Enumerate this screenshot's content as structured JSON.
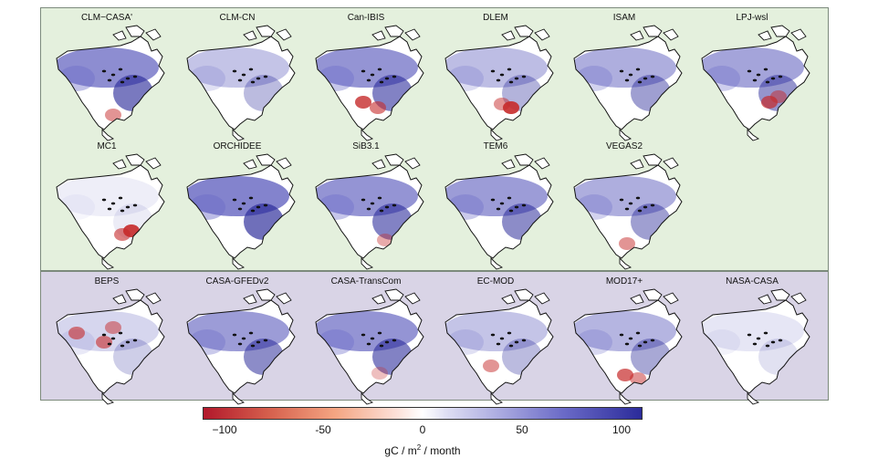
{
  "chart_data": {
    "type": "heatmap",
    "groups": [
      {
        "maps": [
          "CLM−CASA'",
          "CLM-CN",
          "Can-IBIS",
          "DLEM",
          "ISAM",
          "LPJ-wsl",
          "MC1",
          "ORCHIDEE",
          "SiB3.1",
          "TEM6",
          "VEGAS2"
        ]
      },
      {
        "maps": [
          "BEPS",
          "CASA-GFEDv2",
          "CASA-TransCom",
          "EC-MOD",
          "MOD17+",
          "NASA-CASA"
        ]
      }
    ],
    "colorbar": {
      "ticks": [
        "−100",
        "-50",
        "0",
        "50",
        "100"
      ],
      "tick_values": [
        -100,
        -50,
        0,
        50,
        100
      ],
      "range": [
        -110,
        110
      ],
      "label": "gC / m",
      "label_sup": "2",
      "label_tail": " / month",
      "colors": [
        "#b2182b",
        "#f4a582",
        "#ffffff",
        "#a9a9e0",
        "#2b2b9a"
      ]
    }
  }
}
